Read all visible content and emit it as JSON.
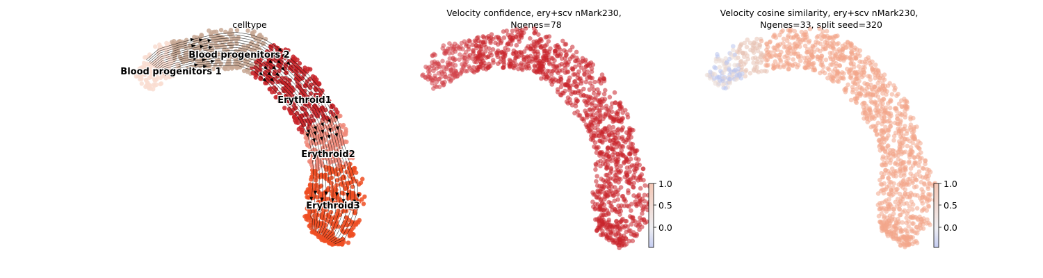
{
  "chart_data": [
    {
      "type": "scatter",
      "title": "celltype",
      "legend_placement": "on data",
      "streamlines": true,
      "categories": [
        {
          "name": "Blood progenitors 1",
          "color": "#f9ddd1"
        },
        {
          "name": "Blood progenitors 2",
          "color": "#c9a995"
        },
        {
          "name": "Erythroid1",
          "color": "#c72228"
        },
        {
          "name": "Erythroid2",
          "color": "#f08a7a"
        },
        {
          "name": "Erythroid3",
          "color": "#ef4e22"
        }
      ]
    },
    {
      "type": "scatter",
      "title_line1": "Velocity confidence, ery+scv nMark230,",
      "title_line2": "Ngenes=78",
      "colormap": "coolwarm",
      "point_color": "#c9242c",
      "colorbar": {
        "vmin": -0.45,
        "vmax": 1.0,
        "ticks": [
          "1.0",
          "0.5",
          "0.0"
        ],
        "tick_values": [
          1.0,
          0.5,
          0.0
        ]
      }
    },
    {
      "type": "scatter",
      "title_line1": "Velocity cosine similarity, ery+scv nMark230,",
      "title_line2": "Ngenes=33, split seed=320",
      "colormap": "coolwarm",
      "point_color": "#f2a58a",
      "colorbar": {
        "vmin": -0.45,
        "vmax": 1.0,
        "ticks": [
          "1.0",
          "0.5",
          "0.0"
        ],
        "tick_values": [
          1.0,
          0.5,
          0.0
        ]
      }
    }
  ]
}
